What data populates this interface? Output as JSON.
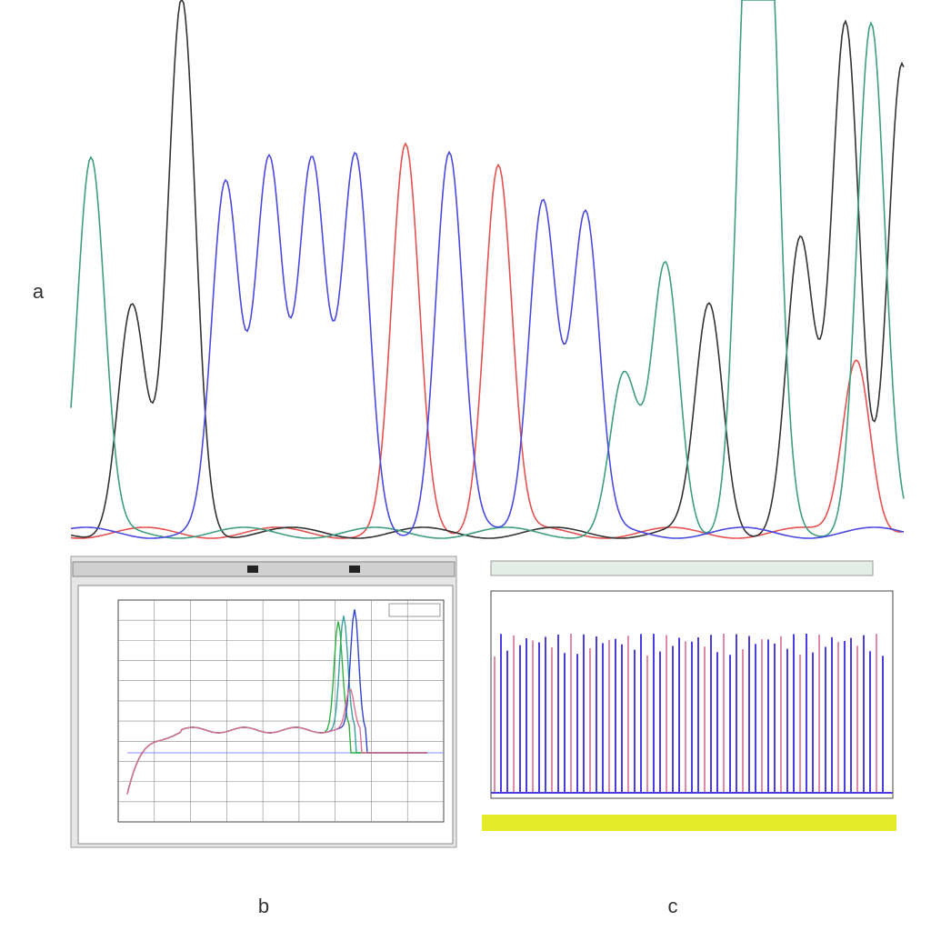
{
  "panels": {
    "a": "a",
    "b": "b",
    "c": "c"
  }
}
